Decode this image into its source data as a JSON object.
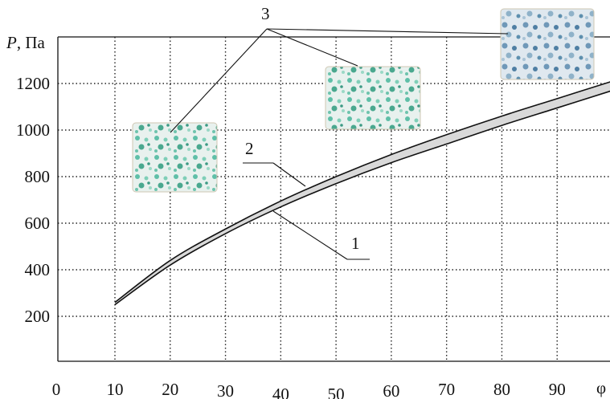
{
  "chart_data": {
    "type": "line",
    "ylabel_symbol": "P",
    "ylabel_unit": ", Па",
    "xlabel": "φ",
    "xlim": [
      0,
      100
    ],
    "ylim": [
      0,
      1400
    ],
    "xticks": [
      "0",
      "10",
      "20",
      "30",
      "40",
      "50",
      "60",
      "70",
      "80",
      "90"
    ],
    "yticks": [
      "200",
      "400",
      "600",
      "800",
      "1000",
      "1200"
    ],
    "ytick_values": [
      200,
      400,
      600,
      800,
      1000,
      1200
    ],
    "grid": true,
    "series": [
      {
        "name": "1",
        "x": [
          10,
          20,
          30,
          40,
          50,
          60,
          70,
          80,
          90,
          100
        ],
        "y": [
          250,
          420,
          555,
          670,
          770,
          860,
          940,
          1020,
          1095,
          1170
        ]
      },
      {
        "name": "2",
        "x": [
          10,
          20,
          30,
          40,
          50,
          60,
          70,
          80,
          90,
          100
        ],
        "y": [
          260,
          440,
          575,
          695,
          800,
          895,
          980,
          1060,
          1135,
          1210
        ]
      }
    ],
    "annotations": [
      "1",
      "2",
      "3"
    ]
  }
}
